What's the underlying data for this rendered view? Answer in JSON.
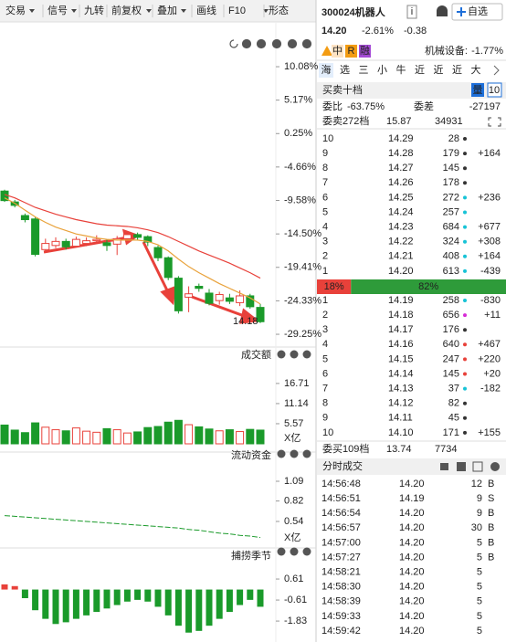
{
  "toolbar": {
    "items": [
      "交易",
      "信号",
      "九转",
      "前复权",
      "叠加",
      "画线",
      "F10",
      "形态"
    ],
    "dropdown": [
      true,
      true,
      false,
      true,
      true,
      false,
      true,
      false
    ]
  },
  "chart": {
    "type": "candlestick",
    "ylim": [
      -29.78,
      11.83
    ],
    "yticks": [
      {
        "value": 10.08,
        "label": "10.08%"
      },
      {
        "value": 5.17,
        "label": "5.17%"
      },
      {
        "value": 0.25,
        "label": "0.25%"
      },
      {
        "value": -4.66,
        "label": "-4.66%"
      },
      {
        "value": -9.58,
        "label": "-9.58%"
      },
      {
        "value": -14.5,
        "label": "-14.50%"
      },
      {
        "value": -19.41,
        "label": "-19.41%"
      },
      {
        "value": -24.33,
        "label": "-24.33%"
      },
      {
        "value": -29.25,
        "label": "-29.25%"
      }
    ],
    "open": [
      -8.2,
      -9.8,
      -11.8,
      -12.3,
      -16.8,
      -16.2,
      -15.6,
      -16.3,
      -15.9,
      -15.5,
      -15.8,
      -16.0,
      -15.2,
      -14.6,
      -14.9,
      -16.5,
      -18.0,
      -21.0,
      -23.8,
      -22.2,
      -23.2,
      -24.3,
      -23.9,
      -24.6,
      -23.6,
      -25.3
    ],
    "close": [
      -9.6,
      -10.3,
      -12.4,
      -17.5,
      -15.9,
      -15.6,
      -16.4,
      -15.3,
      -15.5,
      -15.3,
      -16.2,
      -15.2,
      -14.6,
      -15.0,
      -15.7,
      -18.0,
      -20.9,
      -25.8,
      -23.3,
      -22.5,
      -24.7,
      -23.4,
      -24.4,
      -23.6,
      -25.2,
      -27.4
    ],
    "high": [
      -8.0,
      -9.5,
      -11.5,
      -12.0,
      -15.2,
      -15.0,
      -15.2,
      -14.9,
      -15.0,
      -14.7,
      -15.3,
      -14.8,
      -14.2,
      -14.3,
      -14.7,
      -16.2,
      -17.8,
      -20.7,
      -22.2,
      -21.8,
      -22.6,
      -23.0,
      -23.3,
      -22.8,
      -23.3,
      -24.8
    ],
    "low": [
      -9.8,
      -10.6,
      -12.8,
      -17.8,
      -17.2,
      -16.6,
      -16.8,
      -16.5,
      -16.3,
      -16.0,
      -17.0,
      -17.6,
      -15.4,
      -15.4,
      -16.3,
      -18.5,
      -21.3,
      -26.2,
      -26.0,
      -23.0,
      -25.0,
      -24.9,
      -24.8,
      -25.1,
      -25.5,
      -27.6
    ],
    "ma": [
      {
        "color": "#e8413a",
        "values": [
          -8.7,
          -9.2,
          -9.9,
          -10.6,
          -11.1,
          -11.6,
          -12.0,
          -12.4,
          -12.7,
          -13.0,
          -13.2,
          -13.3,
          -13.4,
          -13.6,
          -13.9,
          -14.3,
          -14.9,
          -15.6,
          -16.3,
          -17.0,
          -17.6,
          -18.2,
          -18.8,
          -19.5,
          -20.2,
          -21.0
        ]
      },
      {
        "color": "#e9a23b",
        "values": [
          -9.2,
          -10.0,
          -11.0,
          -12.0,
          -12.8,
          -13.5,
          -14.0,
          -14.5,
          -14.8,
          -15.1,
          -15.3,
          -15.4,
          -15.4,
          -15.4,
          -15.6,
          -16.1,
          -17.0,
          -18.2,
          -19.3,
          -20.2,
          -21.0,
          -21.8,
          -22.5,
          -23.2,
          -23.9,
          -24.8
        ]
      }
    ],
    "up_color": "#e8413a",
    "down_color": "#1a9a2a",
    "price_label": "14.18"
  },
  "volume": {
    "title": "成交额",
    "unit": "X亿",
    "ylim": [
      0,
      23
    ],
    "yticks": [
      5.57,
      11.14,
      16.71
    ],
    "values": [
      5.2,
      3.8,
      3.1,
      5.8,
      4.6,
      3.9,
      3.6,
      4.4,
      3.5,
      3.2,
      4.2,
      3.9,
      3.0,
      3.3,
      4.5,
      4.8,
      6.0,
      6.5,
      5.3,
      4.7,
      4.1,
      3.6,
      3.9,
      3.4,
      4.0,
      3.8
    ]
  },
  "flow": {
    "title": "流动资金",
    "unit": "X亿",
    "color": "#1a9a2a",
    "ylim": [
      0.24,
      1.365
    ],
    "yticks": [
      0.54,
      0.82,
      1.09
    ],
    "values": [
      0.62,
      0.61,
      0.6,
      0.59,
      0.58,
      0.57,
      0.56,
      0.55,
      0.54,
      0.53,
      0.52,
      0.51,
      0.5,
      0.49,
      0.48,
      0.47,
      0.46,
      0.45,
      0.43,
      0.42,
      0.4,
      0.38,
      0.37,
      0.35,
      0.34,
      0.32
    ]
  },
  "indicator": {
    "title": "捕捞季节",
    "ylim": [
      -2.78,
      1.62
    ],
    "yticks": [
      -1.83,
      -0.61,
      0.61
    ],
    "values": [
      0.3,
      0.2,
      -0.5,
      -1.2,
      -1.7,
      -2.0,
      -1.9,
      -1.7,
      -1.5,
      -1.3,
      -1.1,
      -0.9,
      -0.7,
      -0.6,
      -0.7,
      -1.0,
      -1.5,
      -2.1,
      -2.5,
      -2.4,
      -2.1,
      -1.7,
      -1.3,
      -0.9,
      -0.6,
      -1.0
    ]
  },
  "quote": {
    "code_name": "300024机器人",
    "info_icon": "i",
    "watch": "自选",
    "price": "14.20",
    "change_pct": "-2.61%",
    "change": "-0.38",
    "tags": [
      "中",
      "R",
      "融"
    ],
    "sector": "机械设备:",
    "sector_change": "-1.77%"
  },
  "tabs": [
    "海",
    "选",
    "三",
    "小",
    "牛",
    "近",
    "近",
    "近",
    "大"
  ],
  "book": {
    "title": "买卖十档",
    "mode": "量",
    "depth": "10",
    "ratio_label": "委比",
    "ratio": "-63.75%",
    "diff_label": "委差",
    "diff": "-27197",
    "ask_summary": [
      "委卖272档",
      "15.87",
      "34931"
    ],
    "asks": [
      [
        "10",
        "14.29",
        "28",
        "dark",
        null
      ],
      [
        "9",
        "14.28",
        "179",
        "dark",
        "+164"
      ],
      [
        "8",
        "14.27",
        "145",
        "dark",
        null
      ],
      [
        "7",
        "14.26",
        "178",
        "dark",
        null
      ],
      [
        "6",
        "14.25",
        "272",
        "cyan",
        "+236"
      ],
      [
        "5",
        "14.24",
        "257",
        "cyan",
        null
      ],
      [
        "4",
        "14.23",
        "684",
        "cyan",
        "+677"
      ],
      [
        "3",
        "14.22",
        "324",
        "cyan",
        "+308"
      ],
      [
        "2",
        "14.21",
        "408",
        "cyan",
        "+164"
      ],
      [
        "1",
        "14.20",
        "613",
        "cyan",
        "-439"
      ]
    ],
    "split": {
      "values": [
        18,
        82
      ],
      "value_labels": [
        "18%",
        "82%"
      ]
    },
    "bids": [
      [
        "1",
        "14.19",
        "258",
        "cyan",
        "-830"
      ],
      [
        "2",
        "14.18",
        "656",
        "magenta",
        "+11"
      ],
      [
        "3",
        "14.17",
        "176",
        "dark",
        null
      ],
      [
        "4",
        "14.16",
        "640",
        "red",
        "+467"
      ],
      [
        "5",
        "14.15",
        "247",
        "red",
        "+220"
      ],
      [
        "6",
        "14.14",
        "145",
        "red",
        "+20"
      ],
      [
        "7",
        "14.13",
        "37",
        "cyan",
        "-182"
      ],
      [
        "8",
        "14.12",
        "82",
        "dark",
        null
      ],
      [
        "9",
        "14.11",
        "45",
        "dark",
        null
      ],
      [
        "10",
        "14.10",
        "171",
        "dark",
        "+155"
      ]
    ],
    "bid_summary": [
      "委买109档",
      "13.74",
      "7734"
    ]
  },
  "trades": {
    "title": "分时成交",
    "rows": [
      [
        "14:56:48",
        "14.20",
        "12",
        "B"
      ],
      [
        "14:56:51",
        "14.19",
        "9",
        "S"
      ],
      [
        "14:56:54",
        "14.20",
        "9",
        "B"
      ],
      [
        "14:56:57",
        "14.20",
        "30",
        "B"
      ],
      [
        "14:57:00",
        "14.20",
        "5",
        "B"
      ],
      [
        "14:57:27",
        "14.20",
        "5",
        "B"
      ],
      [
        "14:58:21",
        "14.20",
        "5",
        null
      ],
      [
        "14:58:30",
        "14.20",
        "5",
        null
      ],
      [
        "14:58:39",
        "14.20",
        "5",
        null
      ],
      [
        "14:59:33",
        "14.20",
        "5",
        null
      ],
      [
        "14:59:42",
        "14.20",
        "5",
        null
      ]
    ]
  }
}
